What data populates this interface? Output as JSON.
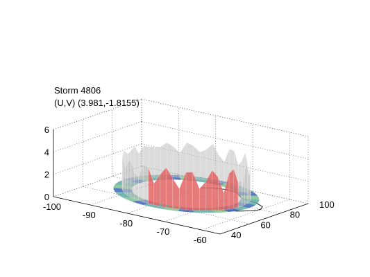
{
  "chart_data": {
    "type": "surface3d",
    "title": "",
    "annotation_lines": [
      "Storm 4806",
      "(U,V) (3.981,-1.8155)"
    ],
    "xlabel": "",
    "ylabel": "",
    "zlabel": "",
    "x_ticks": [
      -100,
      -90,
      -80,
      -70,
      -60
    ],
    "y_ticks": [
      40,
      60,
      80,
      100
    ],
    "z_ticks": [
      0,
      2,
      4,
      6
    ],
    "xlim": [
      -100,
      -55
    ],
    "ylim": [
      40,
      100
    ],
    "zlim": [
      0,
      6
    ],
    "grid": true,
    "colors": {
      "surface_gray": "#bdbdbd",
      "band_teal": "#5aa9a4",
      "band_blue": "#3b63b5",
      "band_green": "#7cc08a",
      "band_red": "#e06464",
      "grid": "#444444",
      "outline": "#000000"
    }
  }
}
